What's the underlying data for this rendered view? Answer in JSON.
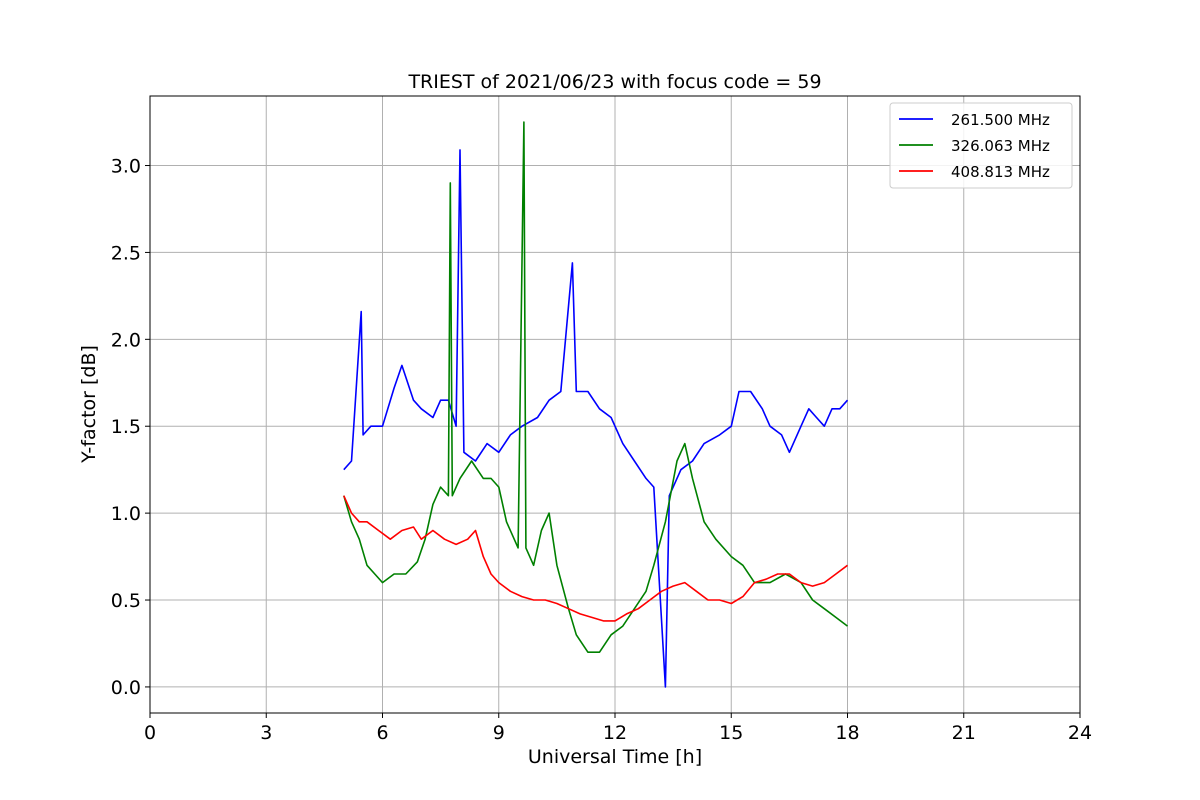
{
  "chart_data": {
    "type": "line",
    "title": "TRIEST of 2021/06/23 with focus code = 59",
    "xlabel": "Universal Time [h]",
    "ylabel": "Y-factor [dB]",
    "xlim": [
      0,
      24
    ],
    "ylim": [
      -0.15,
      3.4
    ],
    "xticks": [
      0,
      3,
      6,
      9,
      12,
      15,
      18,
      21,
      24
    ],
    "xtick_labels": [
      "0",
      "3",
      "6",
      "9",
      "12",
      "15",
      "18",
      "21",
      "24"
    ],
    "yticks": [
      0.0,
      0.5,
      1.0,
      1.5,
      2.0,
      2.5,
      3.0
    ],
    "ytick_labels": [
      "0.0",
      "0.5",
      "1.0",
      "1.5",
      "2.0",
      "2.5",
      "3.0"
    ],
    "grid": true,
    "legend_position": "top-right",
    "series": [
      {
        "name": "261.500 MHz",
        "color": "#0000ff",
        "points": [
          [
            5.0,
            1.25
          ],
          [
            5.2,
            1.3
          ],
          [
            5.45,
            2.16
          ],
          [
            5.5,
            1.45
          ],
          [
            5.7,
            1.5
          ],
          [
            6.0,
            1.5
          ],
          [
            6.3,
            1.72
          ],
          [
            6.5,
            1.85
          ],
          [
            6.8,
            1.65
          ],
          [
            7.0,
            1.6
          ],
          [
            7.3,
            1.55
          ],
          [
            7.5,
            1.65
          ],
          [
            7.7,
            1.65
          ],
          [
            7.9,
            1.5
          ],
          [
            8.0,
            3.09
          ],
          [
            8.1,
            1.35
          ],
          [
            8.4,
            1.3
          ],
          [
            8.7,
            1.4
          ],
          [
            9.0,
            1.35
          ],
          [
            9.3,
            1.45
          ],
          [
            9.6,
            1.5
          ],
          [
            10.0,
            1.55
          ],
          [
            10.3,
            1.65
          ],
          [
            10.6,
            1.7
          ],
          [
            10.9,
            2.44
          ],
          [
            11.0,
            1.7
          ],
          [
            11.3,
            1.7
          ],
          [
            11.6,
            1.6
          ],
          [
            11.9,
            1.55
          ],
          [
            12.2,
            1.4
          ],
          [
            12.5,
            1.3
          ],
          [
            12.8,
            1.2
          ],
          [
            13.0,
            1.15
          ],
          [
            13.3,
            0.0
          ],
          [
            13.4,
            1.1
          ],
          [
            13.7,
            1.25
          ],
          [
            14.0,
            1.3
          ],
          [
            14.3,
            1.4
          ],
          [
            14.7,
            1.45
          ],
          [
            15.0,
            1.5
          ],
          [
            15.2,
            1.7
          ],
          [
            15.5,
            1.7
          ],
          [
            15.8,
            1.6
          ],
          [
            16.0,
            1.5
          ],
          [
            16.3,
            1.45
          ],
          [
            16.5,
            1.35
          ],
          [
            16.8,
            1.5
          ],
          [
            17.0,
            1.6
          ],
          [
            17.2,
            1.55
          ],
          [
            17.4,
            1.5
          ],
          [
            17.6,
            1.6
          ],
          [
            17.8,
            1.6
          ],
          [
            18.0,
            1.65
          ]
        ]
      },
      {
        "name": "326.063 MHz",
        "color": "#008000",
        "points": [
          [
            5.0,
            1.1
          ],
          [
            5.2,
            0.95
          ],
          [
            5.4,
            0.85
          ],
          [
            5.6,
            0.7
          ],
          [
            5.8,
            0.65
          ],
          [
            6.0,
            0.6
          ],
          [
            6.3,
            0.65
          ],
          [
            6.6,
            0.65
          ],
          [
            6.9,
            0.72
          ],
          [
            7.1,
            0.85
          ],
          [
            7.3,
            1.05
          ],
          [
            7.5,
            1.15
          ],
          [
            7.7,
            1.1
          ],
          [
            7.75,
            2.9
          ],
          [
            7.8,
            1.1
          ],
          [
            8.0,
            1.2
          ],
          [
            8.3,
            1.3
          ],
          [
            8.6,
            1.2
          ],
          [
            8.8,
            1.2
          ],
          [
            9.0,
            1.15
          ],
          [
            9.2,
            0.95
          ],
          [
            9.5,
            0.8
          ],
          [
            9.65,
            3.25
          ],
          [
            9.7,
            0.8
          ],
          [
            9.9,
            0.7
          ],
          [
            10.1,
            0.9
          ],
          [
            10.3,
            1.0
          ],
          [
            10.5,
            0.7
          ],
          [
            10.8,
            0.45
          ],
          [
            11.0,
            0.3
          ],
          [
            11.3,
            0.2
          ],
          [
            11.6,
            0.2
          ],
          [
            11.9,
            0.3
          ],
          [
            12.2,
            0.35
          ],
          [
            12.5,
            0.45
          ],
          [
            12.8,
            0.55
          ],
          [
            13.0,
            0.7
          ],
          [
            13.3,
            0.95
          ],
          [
            13.6,
            1.3
          ],
          [
            13.8,
            1.4
          ],
          [
            14.0,
            1.2
          ],
          [
            14.3,
            0.95
          ],
          [
            14.6,
            0.85
          ],
          [
            15.0,
            0.75
          ],
          [
            15.3,
            0.7
          ],
          [
            15.6,
            0.6
          ],
          [
            16.0,
            0.6
          ],
          [
            16.4,
            0.65
          ],
          [
            16.8,
            0.6
          ],
          [
            17.1,
            0.5
          ],
          [
            17.4,
            0.45
          ],
          [
            17.7,
            0.4
          ],
          [
            18.0,
            0.35
          ]
        ]
      },
      {
        "name": "408.813 MHz",
        "color": "#ff0000",
        "points": [
          [
            5.0,
            1.1
          ],
          [
            5.2,
            1.0
          ],
          [
            5.4,
            0.95
          ],
          [
            5.6,
            0.95
          ],
          [
            5.9,
            0.9
          ],
          [
            6.2,
            0.85
          ],
          [
            6.5,
            0.9
          ],
          [
            6.8,
            0.92
          ],
          [
            7.0,
            0.85
          ],
          [
            7.3,
            0.9
          ],
          [
            7.6,
            0.85
          ],
          [
            7.9,
            0.82
          ],
          [
            8.2,
            0.85
          ],
          [
            8.4,
            0.9
          ],
          [
            8.6,
            0.75
          ],
          [
            8.8,
            0.65
          ],
          [
            9.0,
            0.6
          ],
          [
            9.3,
            0.55
          ],
          [
            9.6,
            0.52
          ],
          [
            9.9,
            0.5
          ],
          [
            10.2,
            0.5
          ],
          [
            10.5,
            0.48
          ],
          [
            10.8,
            0.45
          ],
          [
            11.1,
            0.42
          ],
          [
            11.4,
            0.4
          ],
          [
            11.7,
            0.38
          ],
          [
            12.0,
            0.38
          ],
          [
            12.3,
            0.42
          ],
          [
            12.6,
            0.45
          ],
          [
            12.9,
            0.5
          ],
          [
            13.2,
            0.55
          ],
          [
            13.5,
            0.58
          ],
          [
            13.8,
            0.6
          ],
          [
            14.1,
            0.55
          ],
          [
            14.4,
            0.5
          ],
          [
            14.7,
            0.5
          ],
          [
            15.0,
            0.48
          ],
          [
            15.3,
            0.52
          ],
          [
            15.6,
            0.6
          ],
          [
            15.9,
            0.62
          ],
          [
            16.2,
            0.65
          ],
          [
            16.5,
            0.65
          ],
          [
            16.8,
            0.6
          ],
          [
            17.1,
            0.58
          ],
          [
            17.4,
            0.6
          ],
          [
            17.7,
            0.65
          ],
          [
            18.0,
            0.7
          ]
        ]
      }
    ]
  }
}
